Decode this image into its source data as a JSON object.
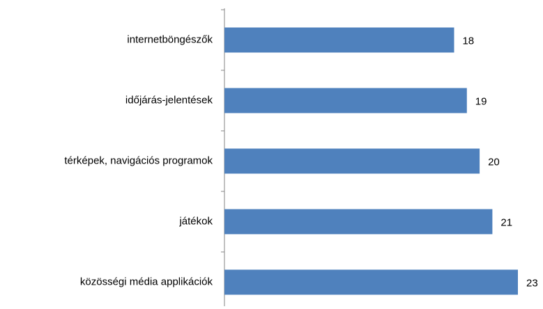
{
  "chart_data": {
    "type": "bar",
    "orientation": "horizontal",
    "categories": [
      "internetböngészők",
      "időjárás-jelentések",
      "térképek, navigációs programok",
      "játékok",
      "közösségi média applikációk"
    ],
    "values": [
      18,
      19,
      20,
      21,
      23
    ],
    "color": "#4f81bd"
  }
}
